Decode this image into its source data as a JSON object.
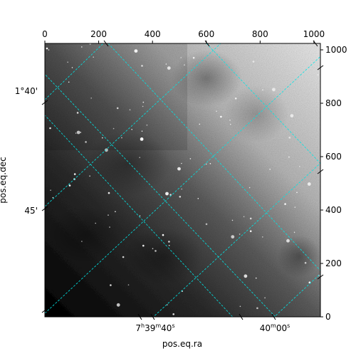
{
  "chart_data": {
    "type": "image",
    "xlabel": "pos.eq.ra",
    "ylabel": "pos.eq.dec",
    "pixel_axes": {
      "x": {
        "range": [
          0,
          1024
        ],
        "ticks": [
          0,
          200,
          400,
          600,
          800,
          1000
        ],
        "position": "top"
      },
      "y": {
        "range": [
          0,
          1024
        ],
        "ticks": [
          0,
          200,
          400,
          600,
          800,
          1000
        ],
        "position": "right"
      }
    },
    "world_axes": {
      "ra": {
        "ticks": [
          {
            "label_main": "7h39m40s",
            "base": "7",
            "sup1": "h",
            "mid": "39",
            "sup2": "m",
            "end": "40",
            "sup3": "s"
          },
          {
            "label_main": "40m00s",
            "base": "",
            "sup1": "",
            "mid": "40",
            "sup2": "m",
            "end": "00",
            "sup3": "s"
          }
        ],
        "position": "bottom"
      },
      "dec": {
        "ticks": [
          "1°40'",
          "45'"
        ],
        "position": "left"
      }
    },
    "grid": true,
    "grid_color": "#00e5e5",
    "image_colormap": "gray"
  }
}
